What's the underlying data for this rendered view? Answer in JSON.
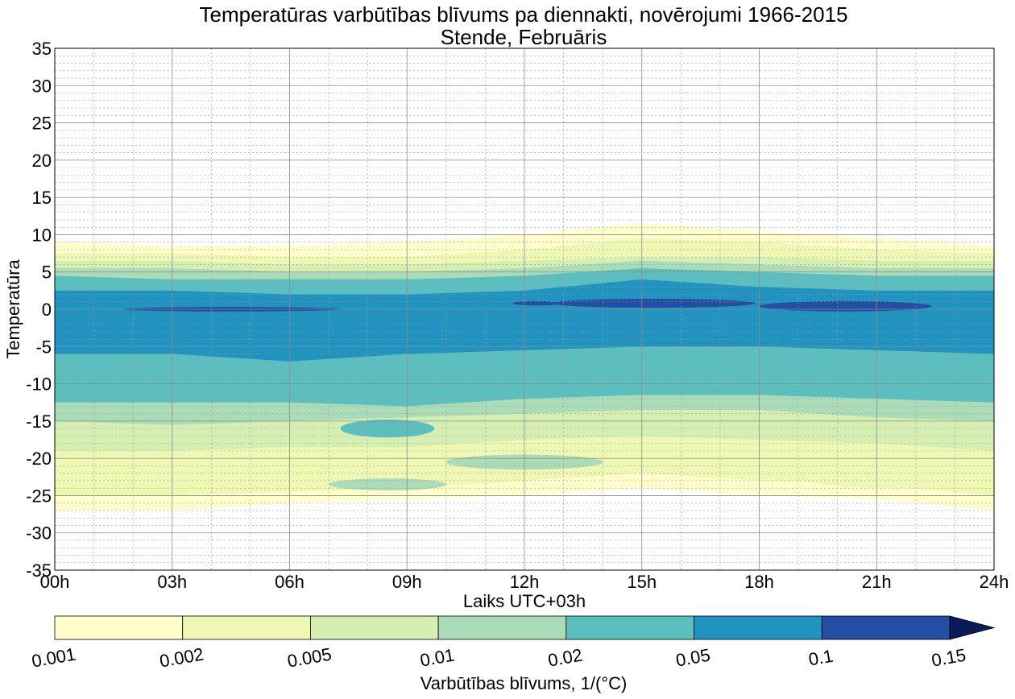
{
  "chart_data": {
    "type": "contour",
    "title": "Temperatūras varbūtības blīvums pa diennakti, novērojumi 1966-2015",
    "subtitle": "Stende, Februāris",
    "xlabel": "Laiks UTC+03h",
    "ylabel": "Temperatūra",
    "xlim": [
      0,
      24
    ],
    "ylim": [
      -35,
      35
    ],
    "x_ticks": [
      0,
      3,
      6,
      9,
      12,
      15,
      18,
      21,
      24
    ],
    "x_tick_labels": [
      "00h",
      "03h",
      "06h",
      "09h",
      "12h",
      "15h",
      "18h",
      "21h",
      "24h"
    ],
    "y_ticks": [
      -35,
      -30,
      -25,
      -20,
      -15,
      -10,
      -5,
      0,
      5,
      10,
      15,
      20,
      25,
      30,
      35
    ],
    "y_tick_labels": [
      "-35",
      "-30",
      "-25",
      "-20",
      "-15",
      "-10",
      "-5",
      "0",
      "5",
      "10",
      "15",
      "20",
      "25",
      "30",
      "35"
    ],
    "grid": true,
    "colorbar": {
      "label": "Varbūtības blīvums, 1/(°C)",
      "levels": [
        0.001,
        0.002,
        0.005,
        0.01,
        0.02,
        0.05,
        0.1,
        0.15
      ],
      "level_labels": [
        "0.001",
        "0.002",
        "0.005",
        "0.01",
        "0.02",
        "0.05",
        "0.1",
        "0.15"
      ],
      "colors": [
        "#ffffcc",
        "#eef8b3",
        "#d5efb3",
        "#a9dcb7",
        "#5bbfc0",
        "#2193c1",
        "#234ea1",
        "#081d58"
      ],
      "extend": "max"
    },
    "x": [
      0,
      3,
      6,
      9,
      12,
      15,
      18,
      21,
      24
    ],
    "bands": [
      {
        "level": 0.001,
        "upper": [
          9.0,
          8.5,
          8.5,
          9.0,
          10.0,
          11.5,
          10.5,
          9.5,
          8.5
        ],
        "lower": [
          -27.0,
          -27.0,
          -26.0,
          -25.5,
          -25.0,
          -24.0,
          -25.0,
          -25.5,
          -27.0
        ]
      },
      {
        "level": 0.002,
        "upper": [
          7.5,
          7.5,
          7.0,
          7.0,
          8.0,
          9.5,
          9.0,
          8.0,
          7.5
        ],
        "lower": [
          -25.0,
          -25.0,
          -24.5,
          -24.0,
          -23.0,
          -22.0,
          -23.0,
          -23.5,
          -25.0
        ]
      },
      {
        "level": 0.005,
        "upper": [
          6.5,
          6.5,
          6.0,
          6.0,
          6.5,
          7.0,
          7.0,
          6.5,
          6.5
        ],
        "lower": [
          -19.0,
          -19.0,
          -18.5,
          -18.5,
          -17.5,
          -17.0,
          -17.5,
          -18.0,
          -19.0
        ]
      },
      {
        "level": 0.01,
        "upper": [
          5.5,
          5.5,
          5.0,
          5.0,
          5.5,
          6.5,
          6.0,
          5.5,
          5.5
        ],
        "lower": [
          -15.0,
          -15.5,
          -15.0,
          -14.5,
          -14.0,
          -13.5,
          -13.5,
          -14.5,
          -15.0
        ]
      },
      {
        "level": 0.02,
        "upper": [
          4.5,
          4.0,
          4.0,
          4.0,
          4.5,
          5.5,
          5.0,
          4.5,
          4.5
        ],
        "lower": [
          -12.5,
          -12.5,
          -12.5,
          -13.0,
          -12.0,
          -11.5,
          -11.5,
          -12.0,
          -12.5
        ]
      },
      {
        "level": 0.05,
        "upper": [
          2.5,
          2.5,
          2.0,
          2.0,
          2.5,
          4.0,
          3.0,
          2.5,
          2.5
        ],
        "lower": [
          -6.0,
          -6.0,
          -7.0,
          -6.0,
          -5.5,
          -5.0,
          -5.0,
          -5.5,
          -6.0
        ]
      }
    ],
    "spots": [
      {
        "level": 0.1,
        "x": 4.5,
        "y": 0.0,
        "half_width": 2.8,
        "half_height": 0.3
      },
      {
        "level": 0.1,
        "x": 12.3,
        "y": 0.8,
        "half_width": 0.6,
        "half_height": 0.3
      },
      {
        "level": 0.1,
        "x": 15.3,
        "y": 0.8,
        "half_width": 2.6,
        "half_height": 0.6
      },
      {
        "level": 0.1,
        "x": 20.2,
        "y": 0.4,
        "half_width": 2.2,
        "half_height": 0.7
      },
      {
        "level": 0.02,
        "x": 8.5,
        "y": -16.0,
        "half_width": 1.2,
        "half_height": 1.2
      },
      {
        "level": 0.01,
        "x": 12.0,
        "y": -20.5,
        "half_width": 2.0,
        "half_height": 1.0
      },
      {
        "level": 0.01,
        "x": 8.5,
        "y": -23.5,
        "half_width": 1.5,
        "half_height": 0.8
      },
      {
        "level": 0.002,
        "x": 21.5,
        "y": -22.5,
        "half_width": 2.5,
        "half_height": 1.5
      }
    ]
  }
}
